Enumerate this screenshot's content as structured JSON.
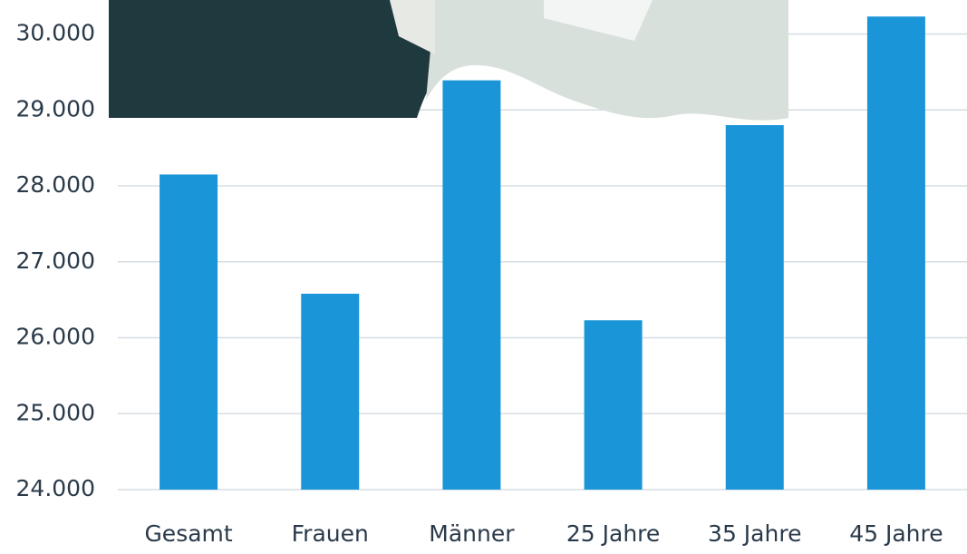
{
  "chart_data": {
    "type": "bar",
    "categories": [
      "Gesamt",
      "Frauen",
      "Männer",
      "25 Jahre",
      "35 Jahre",
      "45 Jahre"
    ],
    "values": [
      28150,
      26580,
      29390,
      26230,
      28800,
      30230
    ],
    "color": "#1a96d8",
    "ylim": [
      24000,
      30400
    ],
    "yticks": [
      {
        "value": 24000,
        "label": "24.000"
      },
      {
        "value": 25000,
        "label": "25.000"
      },
      {
        "value": 26000,
        "label": "26.000"
      },
      {
        "value": 27000,
        "label": "27.000"
      },
      {
        "value": 28000,
        "label": "28.000"
      },
      {
        "value": 29000,
        "label": "29.000"
      },
      {
        "value": 30000,
        "label": "30.000"
      }
    ],
    "grid": true
  }
}
